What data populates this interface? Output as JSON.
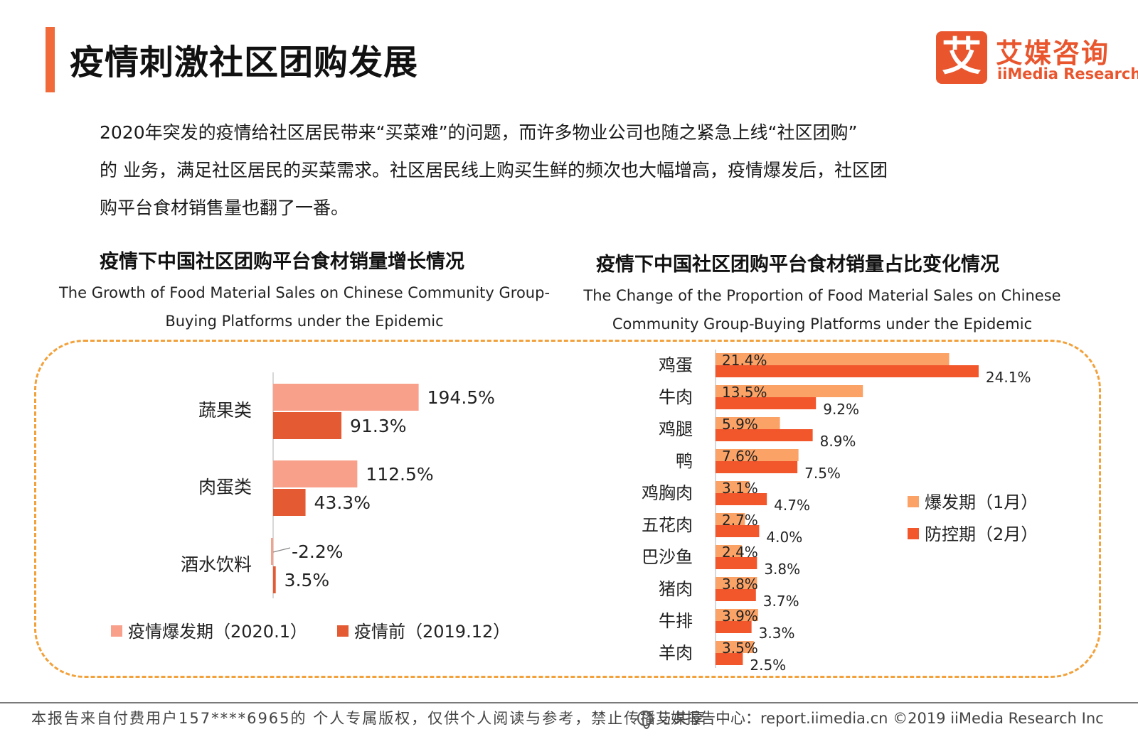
{
  "header": {
    "title": "疫情刺激社区团购发展",
    "logo_cn": "艾媒咨询",
    "logo_en": "iiMedia Research",
    "logo_mark": "艾"
  },
  "intro_lines": [
    "2020年突发的疫情给社区居民带来“买菜难”的问题，而许多物业公司也随之紧急上线“社区团购”",
    "的 业务，满足社区居民的买菜需求。社区居民线上购买生鲜的频次也大幅增高，疫情爆发后，社区团",
    "购平台食材销售量也翻了一番。"
  ],
  "chart_left": {
    "title_cn": "疫情下中国社区团购平台食材销量增长情况",
    "title_en_lines": [
      "The Growth of Food Material Sales on Chinese Community Group-",
      "Buying Platforms under the Epidemic"
    ]
  },
  "chart_right": {
    "title_cn": "疫情下中国社区团购平台食材销量占比变化情况",
    "title_en_lines": [
      "The Change of the Proportion of Food Material Sales on Chinese",
      "Community Group-Buying Platforms under the Epidemic"
    ]
  },
  "chart_data": [
    {
      "type": "bar",
      "orientation": "horizontal",
      "title": "疫情下中国社区团购平台食材销量增长情况",
      "categories": [
        "蔬果类",
        "肉蛋类",
        "酒水饮料"
      ],
      "series": [
        {
          "name": "疫情爆发期（2020.1）",
          "values": [
            194.5,
            112.5,
            -2.2
          ],
          "labels": [
            "194.5%",
            "112.5%",
            "-2.2%"
          ],
          "color": "#f9a08a"
        },
        {
          "name": "疫情前（2019.12）",
          "values": [
            91.3,
            43.3,
            3.5
          ],
          "labels": [
            "91.3%",
            "43.3%",
            "3.5%"
          ],
          "color": "#e35a33"
        }
      ],
      "unit": "%",
      "legend": "bottom",
      "grid": false
    },
    {
      "type": "bar",
      "orientation": "horizontal",
      "title": "疫情下中国社区团购平台食材销量占比变化情况",
      "categories": [
        "鸡蛋",
        "牛肉",
        "鸡腿",
        "鸭",
        "鸡胸肉",
        "五花肉",
        "巴沙鱼",
        "猪肉",
        "牛排",
        "羊肉"
      ],
      "series": [
        {
          "name": "爆发期（1月）",
          "values": [
            21.4,
            13.5,
            5.9,
            7.6,
            3.1,
            2.7,
            2.4,
            3.8,
            3.9,
            3.5
          ],
          "labels": [
            "21.4%",
            "13.5%",
            "5.9%",
            "7.6%",
            "3.1%",
            "2.7%",
            "2.4%",
            "3.8%",
            "3.9%",
            "3.5%"
          ],
          "color": "#fba266"
        },
        {
          "name": "防控期（2月）",
          "values": [
            24.1,
            9.2,
            8.9,
            7.5,
            4.7,
            4.0,
            3.8,
            3.7,
            3.3,
            2.5
          ],
          "labels": [
            "24.1%",
            "9.2%",
            "8.9%",
            "7.5%",
            "4.7%",
            "4.0%",
            "3.8%",
            "3.7%",
            "3.3%",
            "2.5%"
          ],
          "color": "#f2562b"
        }
      ],
      "unit": "%",
      "legend": "right",
      "grid": false
    }
  ],
  "footer": {
    "left": "本报告来自付费用户157****6965的 个人专属版权，仅供个人阅读与参考，禁止传播与共享",
    "right": "艾媒报告中心：report.iimedia.cn   ©2019  iiMedia Research  Inc"
  }
}
